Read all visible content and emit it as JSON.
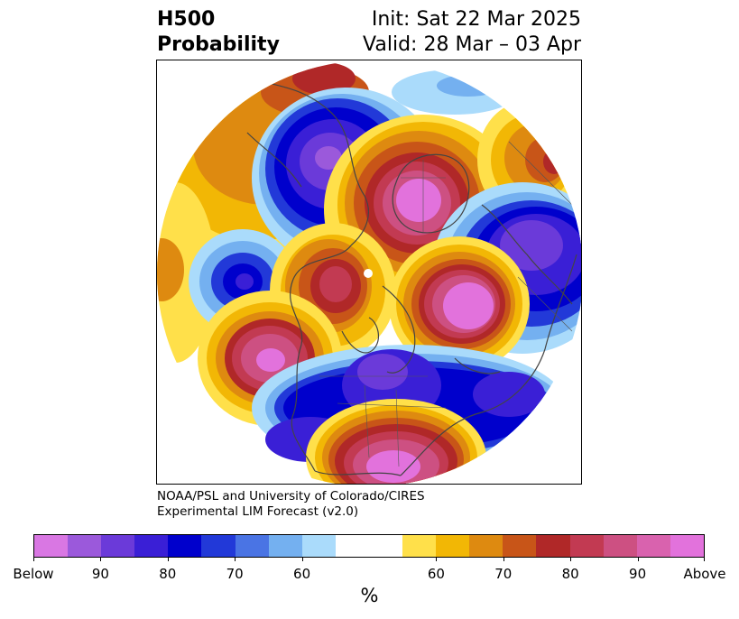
{
  "title": {
    "left_line1": "H500",
    "left_line2": "Probability",
    "right_line1": "Init: Sat 22 Mar 2025",
    "right_line2": "Valid: 28 Mar – 03 Apr"
  },
  "credit": {
    "line1": "NOAA/PSL and University of Colorado/CIRES",
    "line2": "Experimental LIM Forecast (v2.0)"
  },
  "colorbar": {
    "unit": "%",
    "tick_labels": [
      "Below",
      "90",
      "80",
      "70",
      "60",
      "60",
      "70",
      "80",
      "90",
      "Above"
    ],
    "colors": [
      "#d977e3",
      "#9b59db",
      "#6b3ad9",
      "#3a1fd6",
      "#0000cc",
      "#2239d8",
      "#4a74e4",
      "#74b0f0",
      "#aadbfb",
      "#ffffff",
      "#ffe04a",
      "#f2b705",
      "#de8a10",
      "#c85518",
      "#b02828",
      "#c23a52",
      "#cd5082",
      "#d962ae",
      "#e272dc"
    ]
  },
  "map": {
    "colors": {
      "below_deep": "#6b3ad9",
      "below_core": "#9b59db",
      "below_mid": "#3a1fd6",
      "below_blue": "#0000cc",
      "below_royal": "#2239d8",
      "below_light": "#74b0f0",
      "below_pale": "#aadbfb",
      "above_yellow": "#ffe04a",
      "above_gold": "#f2b705",
      "above_orange": "#de8a10",
      "above_rust": "#c85518",
      "above_red": "#b02828",
      "above_rose": "#c23a52",
      "above_pink": "#cd5082",
      "above_magenta": "#e272dc",
      "coast": "#444444"
    }
  }
}
